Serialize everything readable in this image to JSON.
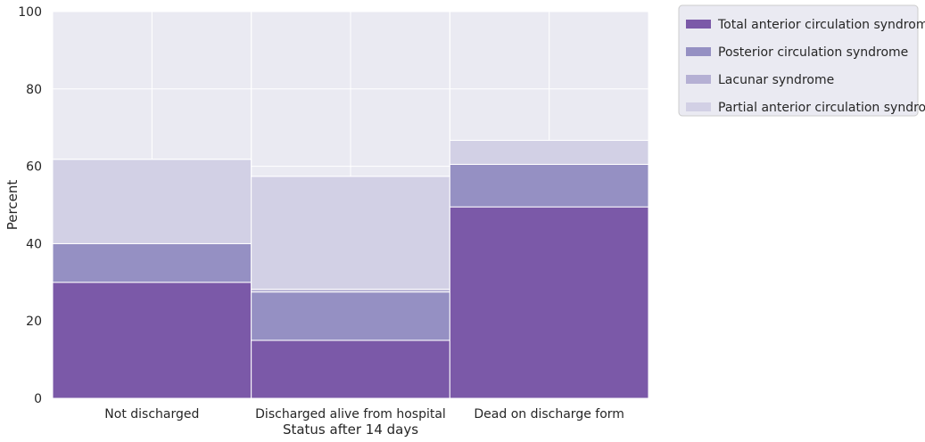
{
  "chart_data": {
    "type": "bar",
    "stacked": true,
    "xlabel": "Status after 14 days",
    "ylabel": "Percent",
    "ylim": [
      0,
      100
    ],
    "yticks": [
      0,
      20,
      40,
      60,
      80,
      100
    ],
    "categories": [
      "Not discharged",
      "Discharged alive from hospital",
      "Dead on discharge form"
    ],
    "series": [
      {
        "name": "Total anterior circulation syndrome",
        "color": "#7b59a8",
        "values": [
          30.0,
          15.0,
          49.5
        ]
      },
      {
        "name": "Posterior circulation syndrome",
        "color": "#9590c3",
        "values": [
          10.0,
          12.5,
          11.0
        ]
      },
      {
        "name": "Lacunar syndrome",
        "color": "#b5b0d4",
        "values": [
          0.0,
          0.7,
          0.0
        ]
      },
      {
        "name": "Partial anterior circulation syndrome",
        "color": "#d2d0e5",
        "values": [
          21.8,
          29.2,
          6.2
        ]
      }
    ],
    "grid": true,
    "legend": "outside-top-right",
    "background_color": "#eaeaf2"
  }
}
